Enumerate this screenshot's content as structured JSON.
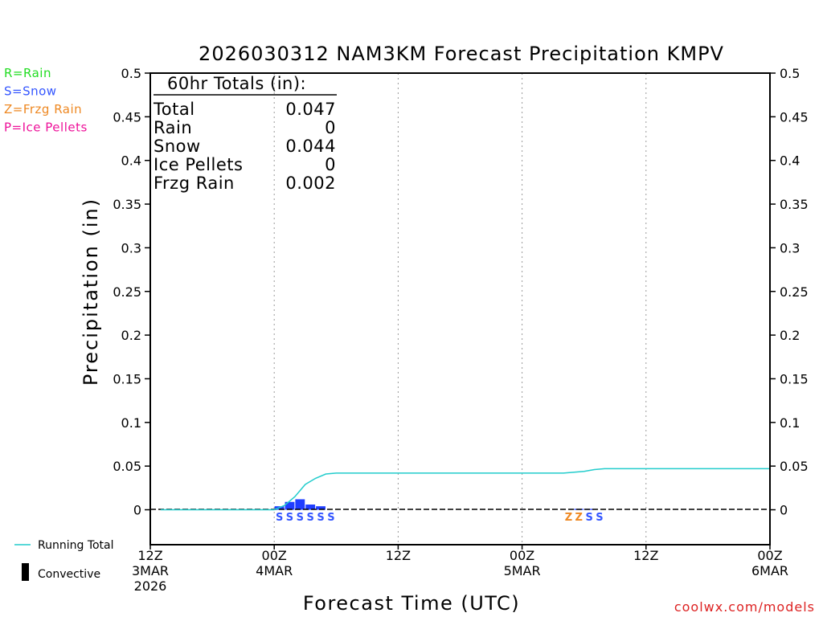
{
  "chart_data": {
    "type": "bar+line",
    "title": "2026030312 NAM3KM Forecast Precipitation KMPV",
    "xlabel": "Forecast Time (UTC)",
    "ylabel": "Precipitation (in)",
    "ylim": [
      -0.04,
      0.5
    ],
    "yticks": [
      0,
      0.05,
      0.1,
      0.15,
      0.2,
      0.25,
      0.3,
      0.35,
      0.4,
      0.45,
      0.5
    ],
    "ytick_labels": [
      "0",
      "0.05",
      "0.1",
      "0.15",
      "0.2",
      "0.25",
      "0.3",
      "0.35",
      "0.4",
      "0.45",
      "0.5"
    ],
    "xlim_hours": [
      0,
      60
    ],
    "xticks": [
      {
        "hour": 0,
        "lines": [
          "12Z",
          "3MAR",
          "2026"
        ]
      },
      {
        "hour": 12,
        "lines": [
          "00Z",
          "4MAR"
        ]
      },
      {
        "hour": 24,
        "lines": [
          "12Z"
        ]
      },
      {
        "hour": 36,
        "lines": [
          "00Z",
          "5MAR"
        ]
      },
      {
        "hour": 48,
        "lines": [
          "12Z"
        ]
      },
      {
        "hour": 60,
        "lines": [
          "00Z",
          "6MAR"
        ]
      }
    ],
    "grid_hours": [
      12,
      24,
      36,
      48
    ],
    "precip_types": [
      {
        "code": "R",
        "label": "R=Rain",
        "color": "#22dd22"
      },
      {
        "code": "S",
        "label": "S=Snow",
        "color": "#3355ff"
      },
      {
        "code": "Z",
        "label": "Z=Frzg Rain",
        "color": "#ee8822"
      },
      {
        "code": "P",
        "label": "P=Ice Pellets",
        "color": "#ee1199"
      }
    ],
    "series": [
      {
        "name": "Hourly Precipitation",
        "kind": "bar",
        "color": "#1f3dff",
        "hours": [
          13,
          14,
          15,
          16,
          17,
          42,
          43
        ],
        "values": [
          0.004,
          0.009,
          0.012,
          0.006,
          0.004,
          0.001,
          0.001
        ]
      },
      {
        "name": "Running Total",
        "kind": "line",
        "color": "#22cccc",
        "hours": [
          1,
          12,
          13,
          14,
          15,
          16,
          17,
          18,
          40,
          42,
          43,
          44,
          60
        ],
        "values": [
          0,
          0,
          0.005,
          0.015,
          0.029,
          0.036,
          0.041,
          0.042,
          0.042,
          0.044,
          0.046,
          0.047,
          0.047
        ]
      }
    ],
    "ptype_markers": [
      {
        "hour": 12.5,
        "code": "S"
      },
      {
        "hour": 13.5,
        "code": "S"
      },
      {
        "hour": 14.5,
        "code": "S"
      },
      {
        "hour": 15.5,
        "code": "S"
      },
      {
        "hour": 16.5,
        "code": "S"
      },
      {
        "hour": 17.5,
        "code": "S"
      },
      {
        "hour": 40.5,
        "code": "Z"
      },
      {
        "hour": 41.5,
        "code": "Z"
      },
      {
        "hour": 42.5,
        "code": "S"
      },
      {
        "hour": 43.5,
        "code": "S"
      }
    ],
    "summary": {
      "heading": "60hr Totals (in):",
      "rows": [
        {
          "label": "Total",
          "value": "0.047"
        },
        {
          "label": "Rain",
          "value": "0"
        },
        {
          "label": "Snow",
          "value": "0.044"
        },
        {
          "label": "Ice Pellets",
          "value": "0"
        },
        {
          "label": "Frzg Rain",
          "value": "0.002"
        }
      ]
    },
    "bottom_legend": [
      {
        "label": "Running Total",
        "color": "#22cccc"
      },
      {
        "label": "Convective",
        "color": "#000000"
      }
    ],
    "credit": "coolwx.com/models"
  }
}
